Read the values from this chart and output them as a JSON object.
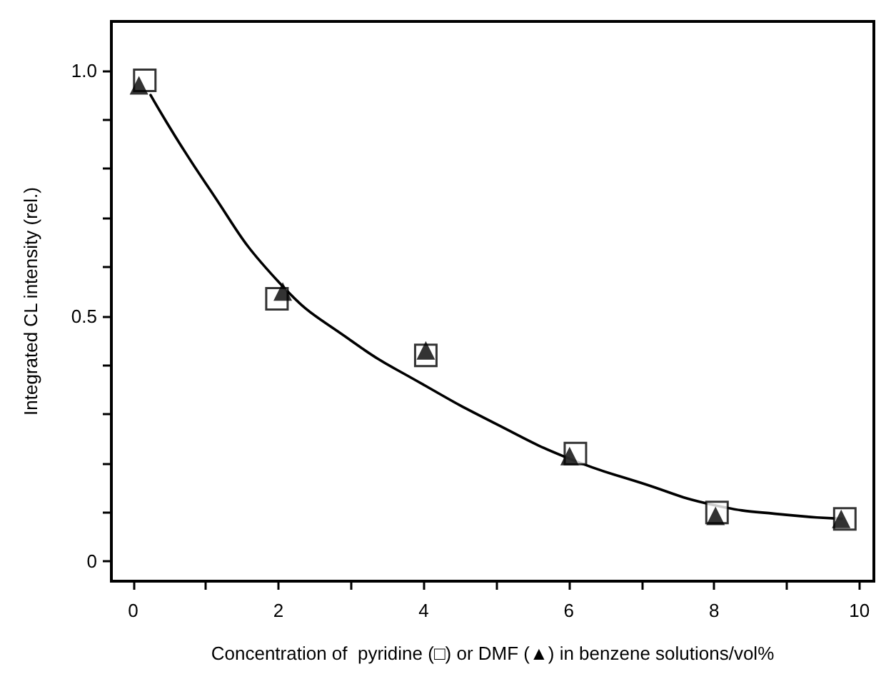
{
  "chart_data": {
    "type": "scatter",
    "xlabel": "Concentration of  pyridine (□) or DMF (▲) in benzene solutions/vol%",
    "ylabel": "Integrated CL intensity (rel.)",
    "xlim": [
      -0.3,
      10.2
    ],
    "ylim": [
      -0.04,
      1.1
    ],
    "xticks": [
      0,
      {
        "value": 1,
        "label": null
      },
      2,
      {
        "value": 3,
        "label": null
      },
      4,
      {
        "value": 5,
        "label": null
      },
      6,
      {
        "value": 7,
        "label": null
      },
      8,
      {
        "value": 9,
        "label": null
      },
      10
    ],
    "yticks": [
      0,
      {
        "value": 0.1,
        "label": null
      },
      {
        "value": 0.2,
        "label": null
      },
      {
        "value": 0.3,
        "label": null
      },
      {
        "value": 0.4,
        "label": null
      },
      {
        "value": 0.5,
        "label": "0.5"
      },
      {
        "value": 0.6,
        "label": null
      },
      {
        "value": 0.7,
        "label": null
      },
      {
        "value": 0.8,
        "label": null
      },
      {
        "value": 0.9,
        "label": null
      },
      {
        "value": 1,
        "label": "1.0"
      }
    ],
    "grid": false,
    "series": [
      {
        "type": "line",
        "color": "#000000",
        "marker": "none",
        "line_style": "solid",
        "x": [
          0.24,
          1,
          2,
          3,
          4,
          5,
          6,
          7,
          8,
          9,
          9.76
        ],
        "values": [
          0.95,
          0.77,
          0.57,
          0.45,
          0.36,
          0.28,
          0.21,
          0.16,
          0.115,
          0.095,
          0.087
        ]
      },
      {
        "color": "#000000",
        "marker": "square",
        "x": [
          0.16,
          1.98,
          4.03,
          6.09,
          8.04,
          9.8
        ],
        "values": [
          0.98,
          0.535,
          0.42,
          0.22,
          0.1,
          0.087
        ]
      },
      {
        "color": "#000000",
        "marker": "triangle",
        "x": [
          0.08,
          2.06,
          4.03,
          6.01,
          8.02,
          9.75
        ],
        "values": [
          0.97,
          0.55,
          0.43,
          0.215,
          0.093,
          0.087
        ]
      }
    ]
  }
}
